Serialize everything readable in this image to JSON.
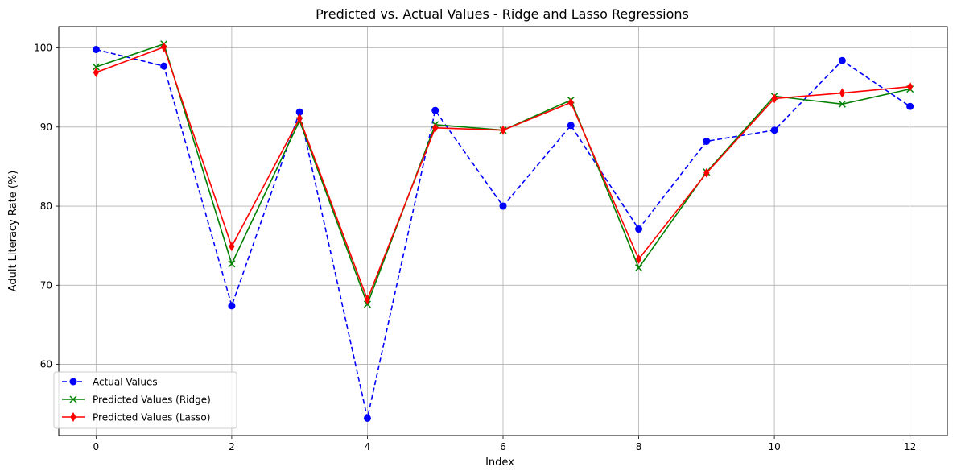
{
  "chart_data": {
    "type": "line",
    "title": "Predicted vs. Actual Values - Ridge and Lasso Regressions",
    "xlabel": "Index",
    "ylabel": "Adult Literacy Rate (%)",
    "xlim": [
      -0.55,
      12.55
    ],
    "ylim": [
      51.0,
      102.7
    ],
    "xticks": [
      0,
      2,
      4,
      6,
      8,
      10,
      12
    ],
    "yticks": [
      60,
      70,
      80,
      90,
      100
    ],
    "grid": true,
    "legend_position": "lower-left",
    "x": [
      0,
      1,
      2,
      3,
      4,
      5,
      6,
      7,
      8,
      9,
      10,
      11,
      12
    ],
    "series": [
      {
        "name": "Actual Values",
        "color": "#0000ff",
        "line_style": "dashed",
        "marker": "circle",
        "values": [
          99.8,
          97.7,
          67.4,
          91.9,
          53.2,
          92.1,
          80.0,
          90.2,
          77.1,
          88.2,
          89.6,
          98.4,
          92.6
        ]
      },
      {
        "name": "Predicted Values (Ridge)",
        "color": "#008000",
        "line_style": "solid",
        "marker": "x",
        "values": [
          97.6,
          100.5,
          72.7,
          90.8,
          67.6,
          90.3,
          89.6,
          93.4,
          72.2,
          84.3,
          93.9,
          92.9,
          94.8
        ]
      },
      {
        "name": "Predicted Values (Lasso)",
        "color": "#ff0000",
        "line_style": "solid",
        "marker": "diamond",
        "values": [
          96.9,
          100.1,
          74.9,
          91.1,
          68.2,
          89.9,
          89.6,
          93.1,
          73.3,
          84.2,
          93.6,
          94.3,
          95.1
        ]
      }
    ]
  }
}
